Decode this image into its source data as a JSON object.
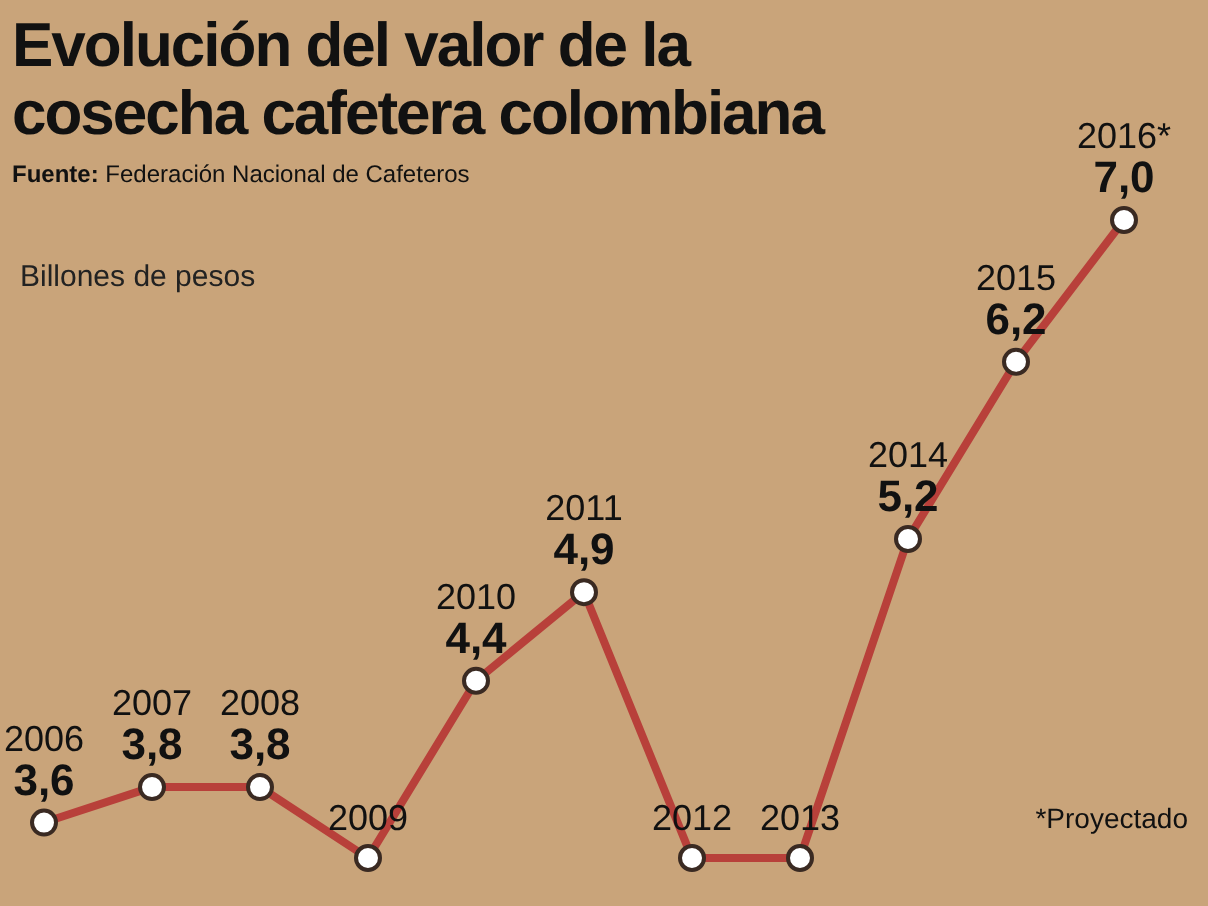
{
  "chart_data": {
    "type": "line",
    "title": "Evolución del valor de la cosecha cafetera colombiana",
    "ylabel": "Billones de pesos",
    "annotations": [
      "Fuente: Federación Nacional de Cafeteros",
      "*Proyectado"
    ],
    "categories": [
      "2006",
      "2007",
      "2008",
      "2009",
      "2010",
      "2011",
      "2012",
      "2013",
      "2014",
      "2015",
      "2016*"
    ],
    "series": [
      {
        "color": "#b8403a",
        "values": [
          3.6,
          3.8,
          3.8,
          3.4,
          4.4,
          4.9,
          3.4,
          3.4,
          5.2,
          6.2,
          7.0
        ],
        "value_labels": [
          "3,6",
          "3,8",
          "3,8",
          null,
          "4,4",
          "4,9",
          null,
          null,
          "5,2",
          "6,2",
          "7,0"
        ]
      }
    ],
    "marker": "circle",
    "line_style": "solid",
    "legend": false
  }
}
